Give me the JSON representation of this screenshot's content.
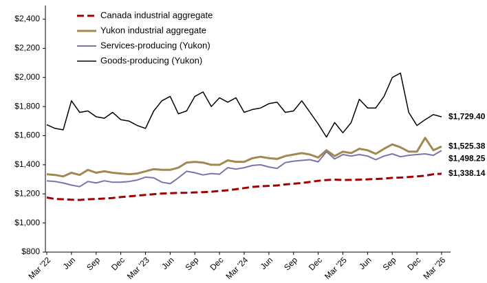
{
  "chart_data": {
    "type": "line",
    "legend": "upper left",
    "grid": false,
    "categories": [
      "Mar '22",
      null,
      null,
      "Jun",
      null,
      null,
      "Sep",
      null,
      null,
      "Dec",
      null,
      null,
      "Mar '23",
      null,
      null,
      "Jun",
      null,
      null,
      "Sep",
      null,
      null,
      "Dec",
      null,
      null,
      "Mar '24",
      null,
      null,
      "Jun",
      null,
      null,
      "Sep",
      null,
      null,
      "Dec",
      null,
      null,
      "Mar '25",
      null,
      null,
      "Jun",
      null,
      null,
      "Sep",
      null,
      null,
      "Dec",
      null,
      null,
      "Mar '26"
    ],
    "ylim": [
      800,
      2400
    ],
    "yticks": [
      {
        "value": 800,
        "label": "$800"
      },
      {
        "value": 1000,
        "label": "$1,000"
      },
      {
        "value": 1200,
        "label": "$1,200"
      },
      {
        "value": 1400,
        "label": "$1,400"
      },
      {
        "value": 1600,
        "label": "$1,600"
      },
      {
        "value": 1800,
        "label": "$1,800"
      },
      {
        "value": 2000,
        "label": "$2,000"
      },
      {
        "value": 2200,
        "label": "$2,200"
      },
      {
        "value": 2400,
        "label": "$2,400"
      }
    ],
    "series": [
      {
        "name": "Canada industrial aggregate",
        "color": "#a00000",
        "label_color": "#c8202a",
        "dashed": true,
        "width": 3,
        "values": [
          1175,
          1165,
          1163,
          1160,
          1158,
          1163,
          1165,
          1168,
          1172,
          1178,
          1183,
          1188,
          1193,
          1198,
          1202,
          1205,
          1207,
          1208,
          1210,
          1212,
          1215,
          1220,
          1225,
          1232,
          1240,
          1248,
          1252,
          1255,
          1258,
          1265,
          1270,
          1275,
          1282,
          1290,
          1295,
          1298,
          1295,
          1296,
          1298,
          1300,
          1302,
          1305,
          1310,
          1312,
          1316,
          1320,
          1325,
          1335,
          1338.14
        ],
        "value_labels": [
          null,
          null,
          null,
          null,
          null,
          null,
          null,
          null,
          null,
          null,
          null,
          null,
          null,
          null,
          null,
          null,
          null,
          null,
          null,
          null,
          null,
          null,
          null,
          null,
          null,
          null,
          null,
          null,
          null,
          null,
          null,
          null,
          null,
          null,
          null,
          null,
          null,
          null,
          null,
          null,
          null,
          null,
          null,
          null,
          null,
          null,
          null,
          null,
          "$1,338.14"
        ]
      },
      {
        "name": "Yukon industrial aggregate",
        "color": "#a08850",
        "label_color": "#b09a5e",
        "dashed": false,
        "width": 3,
        "values": [
          1335,
          1330,
          1320,
          1345,
          1330,
          1365,
          1345,
          1355,
          1345,
          1340,
          1335,
          1340,
          1355,
          1370,
          1365,
          1365,
          1380,
          1415,
          1420,
          1415,
          1400,
          1400,
          1430,
          1420,
          1420,
          1445,
          1455,
          1445,
          1440,
          1460,
          1470,
          1480,
          1470,
          1450,
          1500,
          1460,
          1490,
          1480,
          1510,
          1500,
          1475,
          1510,
          1540,
          1520,
          1490,
          1490,
          1585,
          1500,
          1525.38
        ],
        "value_labels": [
          null,
          null,
          null,
          null,
          null,
          null,
          null,
          null,
          null,
          null,
          null,
          null,
          null,
          null,
          null,
          null,
          null,
          null,
          null,
          null,
          null,
          null,
          null,
          null,
          null,
          null,
          null,
          null,
          null,
          null,
          null,
          null,
          null,
          null,
          null,
          null,
          null,
          null,
          null,
          null,
          null,
          null,
          null,
          null,
          null,
          null,
          null,
          null,
          "$1,525.38"
        ]
      },
      {
        "name": "Services-producing (Yukon)",
        "color": "#7a72a8",
        "label_color": "#4a6fa5",
        "dashed": false,
        "width": 2,
        "values": [
          1290,
          1285,
          1275,
          1260,
          1250,
          1285,
          1275,
          1290,
          1280,
          1280,
          1285,
          1295,
          1315,
          1310,
          1280,
          1270,
          1310,
          1355,
          1345,
          1330,
          1340,
          1335,
          1380,
          1370,
          1380,
          1395,
          1400,
          1385,
          1375,
          1415,
          1425,
          1430,
          1435,
          1420,
          1490,
          1440,
          1470,
          1460,
          1470,
          1460,
          1435,
          1460,
          1475,
          1455,
          1465,
          1470,
          1475,
          1465,
          1498.25
        ],
        "value_labels": [
          null,
          null,
          null,
          null,
          null,
          null,
          null,
          null,
          null,
          null,
          null,
          null,
          null,
          null,
          null,
          null,
          null,
          null,
          null,
          null,
          null,
          null,
          null,
          null,
          null,
          null,
          null,
          null,
          null,
          null,
          null,
          null,
          null,
          null,
          null,
          null,
          null,
          null,
          null,
          null,
          null,
          null,
          null,
          null,
          null,
          null,
          null,
          null,
          "$1,498.25"
        ]
      },
      {
        "name": "Goods-producing (Yukon)",
        "color": "#000000",
        "label_color": "#000000",
        "dashed": false,
        "width": 1.5,
        "values": [
          1675,
          1650,
          1640,
          1840,
          1760,
          1770,
          1730,
          1720,
          1760,
          1710,
          1700,
          1670,
          1650,
          1770,
          1840,
          1870,
          1750,
          1770,
          1870,
          1900,
          1800,
          1860,
          1830,
          1860,
          1760,
          1780,
          1790,
          1820,
          1830,
          1760,
          1770,
          1840,
          1760,
          1680,
          1590,
          1690,
          1620,
          1690,
          1850,
          1790,
          1790,
          1870,
          2000,
          2030,
          1760,
          1670,
          1710,
          1745,
          1729.4
        ],
        "value_labels": [
          null,
          null,
          null,
          null,
          null,
          null,
          null,
          null,
          null,
          null,
          null,
          null,
          null,
          null,
          null,
          null,
          null,
          null,
          null,
          null,
          null,
          null,
          null,
          null,
          null,
          null,
          null,
          null,
          null,
          null,
          null,
          null,
          null,
          null,
          null,
          null,
          null,
          null,
          null,
          null,
          null,
          null,
          null,
          null,
          null,
          null,
          null,
          null,
          "$1,729.40"
        ]
      }
    ]
  }
}
